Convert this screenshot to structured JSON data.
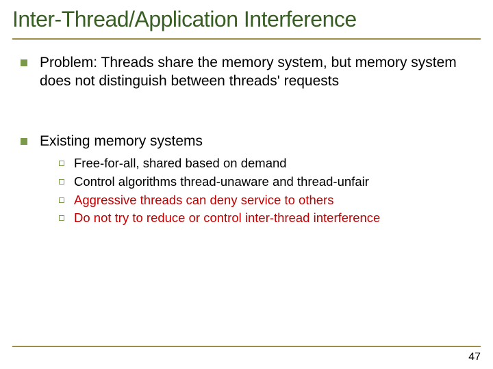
{
  "colors": {
    "title": "#385e24",
    "rule": "#9b8f47",
    "l1_bullet": "#7a9a4a",
    "l2_bullet_border": "#7a9a4a",
    "body_text": "#000000",
    "highlight": "#c00000",
    "pagenum": "#000000"
  },
  "title": "Inter-Thread/Application Interference",
  "bullets": [
    {
      "text": "Problem: Threads share the memory system, but memory system does not distinguish between threads' requests",
      "color_key": "body_text",
      "sub": []
    },
    {
      "text": "Existing memory systems",
      "color_key": "body_text",
      "sub": [
        {
          "text": "Free-for-all, shared based on demand",
          "color_key": "body_text"
        },
        {
          "text": "Control algorithms thread-unaware and thread-unfair",
          "color_key": "body_text"
        },
        {
          "text": "Aggressive threads can deny service to others",
          "color_key": "highlight"
        },
        {
          "text": "Do not try to reduce or control inter-thread interference",
          "color_key": "highlight"
        }
      ]
    }
  ],
  "page_number": "47"
}
